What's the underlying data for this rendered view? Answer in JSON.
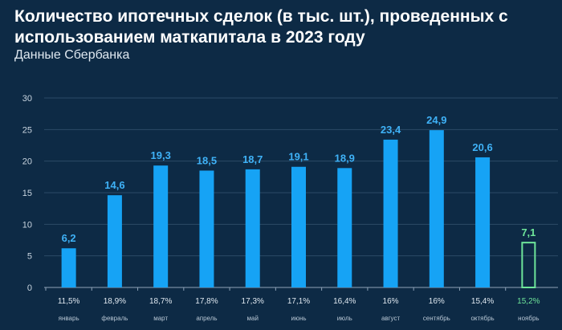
{
  "chart_data": {
    "type": "bar",
    "title": "Количество ипотечных сделок (в тыс. шт.), проведенных с использованием маткапитала в 2023 году",
    "subtitle": "Данные Сбербанка",
    "categories": [
      "январь",
      "февраль",
      "март",
      "апрель",
      "май",
      "июнь",
      "июль",
      "август",
      "сентябрь",
      "октябрь",
      "ноябрь"
    ],
    "values": [
      6.2,
      14.6,
      19.3,
      18.5,
      18.7,
      19.1,
      18.9,
      23.4,
      24.9,
      20.6,
      7.1
    ],
    "value_labels": [
      "6,2",
      "14,6",
      "19,3",
      "18,5",
      "18,7",
      "19,1",
      "18,9",
      "23,4",
      "24,9",
      "20,6",
      "7,1"
    ],
    "shares": [
      "11,5%",
      "18,9%",
      "18,7%",
      "17,8%",
      "17,3%",
      "17,1%",
      "16,4%",
      "16%",
      "16%",
      "15,4%",
      "15,2%"
    ],
    "yticks": [
      0,
      5,
      10,
      15,
      20,
      25,
      30
    ],
    "ylim": [
      0,
      30
    ],
    "grid": true,
    "colors": {
      "bar": "#16a3f5",
      "highlight": "#6ee59a",
      "label": "#3fb2f7"
    }
  }
}
